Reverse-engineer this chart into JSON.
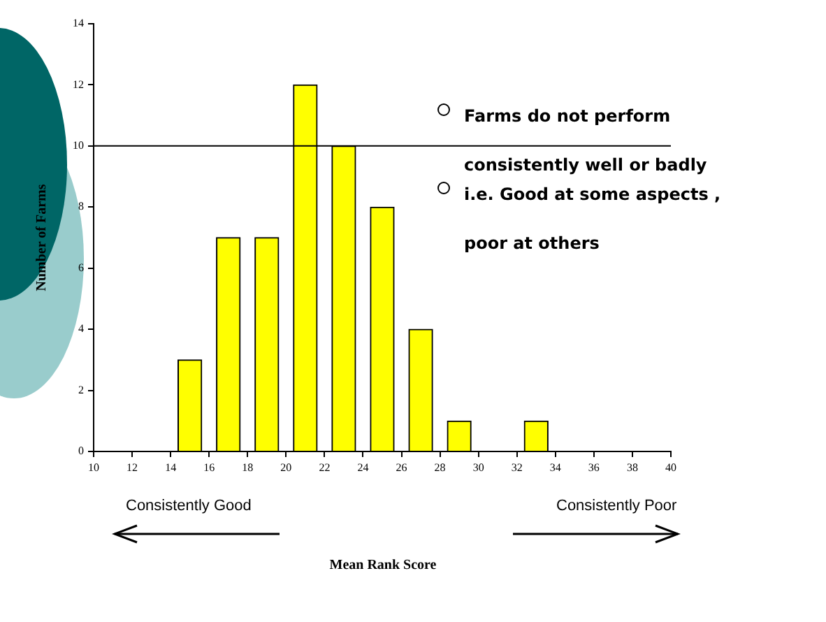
{
  "chart_data": {
    "type": "bar",
    "ylabel": "Number of Farms",
    "x": [
      15,
      17,
      19,
      21,
      23,
      25,
      27,
      29,
      33
    ],
    "values": [
      3,
      7,
      7,
      12,
      10,
      8,
      4,
      1,
      1
    ],
    "color": "#ffff00",
    "xlim": [
      10,
      40
    ],
    "xticks": [
      10,
      12,
      14,
      16,
      18,
      20,
      22,
      24,
      26,
      28,
      30,
      32,
      34,
      36,
      38,
      40
    ],
    "ylim": [
      0,
      14
    ],
    "yticks": [
      0,
      2,
      4,
      6,
      8,
      10,
      12,
      14
    ],
    "grid": false,
    "legend": false,
    "ref_lines": [
      {
        "axis": "y",
        "value": 10,
        "color": "#000000"
      }
    ],
    "annotations": [
      "Farms do not perform consistently well or badly",
      "i.e. Good at some aspects , poor at others",
      "Consistently Good",
      "Consistently Poor",
      "Mean Rank Score"
    ]
  }
}
